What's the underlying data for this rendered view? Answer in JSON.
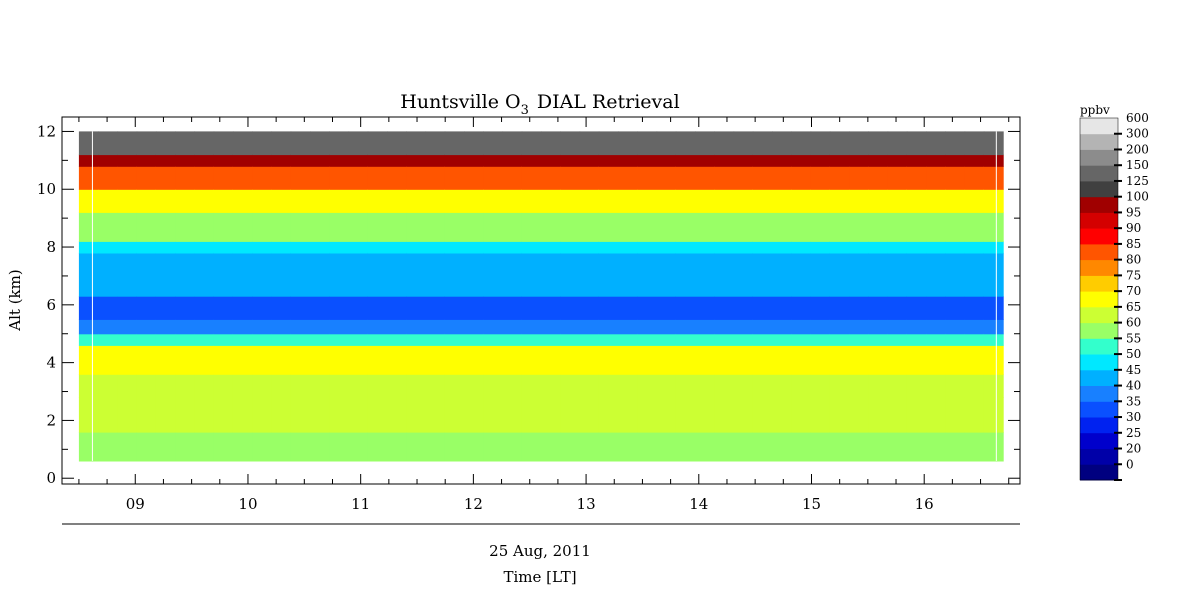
{
  "chart_data": {
    "type": "heatmap",
    "title": "Huntsville O",
    "title_subscript": "3",
    "title_suffix": "DIAL Retrieval",
    "xlabel": "Time [LT]",
    "date_label": "25 Aug, 2011",
    "ylabel": "Alt (km)",
    "colorbar_unit": "ppbv",
    "xlim": [
      8.35,
      16.85
    ],
    "ylim": [
      -0.2,
      12.5
    ],
    "x_ticks": [
      {
        "value": 9,
        "label": "09"
      },
      {
        "value": 10,
        "label": "10"
      },
      {
        "value": 11,
        "label": "11"
      },
      {
        "value": 12,
        "label": "12"
      },
      {
        "value": 13,
        "label": "13"
      },
      {
        "value": 14,
        "label": "14"
      },
      {
        "value": 15,
        "label": "15"
      },
      {
        "value": 16,
        "label": "16"
      }
    ],
    "y_ticks": [
      0,
      2,
      4,
      6,
      8,
      10,
      12
    ],
    "data_time_range": [
      8.5,
      16.7
    ],
    "data_alt_range": [
      0.6,
      12.0
    ],
    "colorbar": [
      {
        "label": "0",
        "color": "#000080"
      },
      {
        "label": "20",
        "color": "#0000a8"
      },
      {
        "label": "25",
        "color": "#0000cc"
      },
      {
        "label": "30",
        "color": "#0022f0"
      },
      {
        "label": "35",
        "color": "#0a50ff"
      },
      {
        "label": "40",
        "color": "#1880ff"
      },
      {
        "label": "45",
        "color": "#00b0ff"
      },
      {
        "label": "50",
        "color": "#00e8ff"
      },
      {
        "label": "55",
        "color": "#33ffcc"
      },
      {
        "label": "60",
        "color": "#99ff66"
      },
      {
        "label": "65",
        "color": "#ccff33"
      },
      {
        "label": "70",
        "color": "#ffff00"
      },
      {
        "label": "75",
        "color": "#ffcc00"
      },
      {
        "label": "80",
        "color": "#ff8800"
      },
      {
        "label": "85",
        "color": "#ff5500"
      },
      {
        "label": "90",
        "color": "#ff0000"
      },
      {
        "label": "95",
        "color": "#d40000"
      },
      {
        "label": "100",
        "color": "#a00000"
      },
      {
        "label": "125",
        "color": "#404040"
      },
      {
        "label": "150",
        "color": "#666666"
      },
      {
        "label": "200",
        "color": "#8c8c8c"
      },
      {
        "label": "300",
        "color": "#b4b4b4"
      },
      {
        "label": "600",
        "color": "#e6e6e6"
      }
    ],
    "profile_layers": [
      {
        "alt": [
          0.6,
          1.6
        ],
        "ppbv": 60
      },
      {
        "alt": [
          1.6,
          2.8
        ],
        "ppbv": 68
      },
      {
        "alt": [
          2.8,
          3.6
        ],
        "ppbv": 65
      },
      {
        "alt": [
          3.6,
          4.6
        ],
        "ppbv": 70
      },
      {
        "alt": [
          4.6,
          5.0
        ],
        "ppbv": 55
      },
      {
        "alt": [
          5.0,
          5.5
        ],
        "ppbv": 40
      },
      {
        "alt": [
          5.5,
          6.3
        ],
        "ppbv": 35
      },
      {
        "alt": [
          6.3,
          7.8
        ],
        "ppbv": 45
      },
      {
        "alt": [
          7.8,
          8.2
        ],
        "ppbv": 50
      },
      {
        "alt": [
          8.2,
          9.2
        ],
        "ppbv": 60
      },
      {
        "alt": [
          9.2,
          10.0
        ],
        "ppbv": 70
      },
      {
        "alt": [
          10.0,
          10.8
        ],
        "ppbv": 85
      },
      {
        "alt": [
          10.8,
          11.2
        ],
        "ppbv": 100
      },
      {
        "alt": [
          11.2,
          12.0
        ],
        "ppbv": 150
      }
    ]
  }
}
